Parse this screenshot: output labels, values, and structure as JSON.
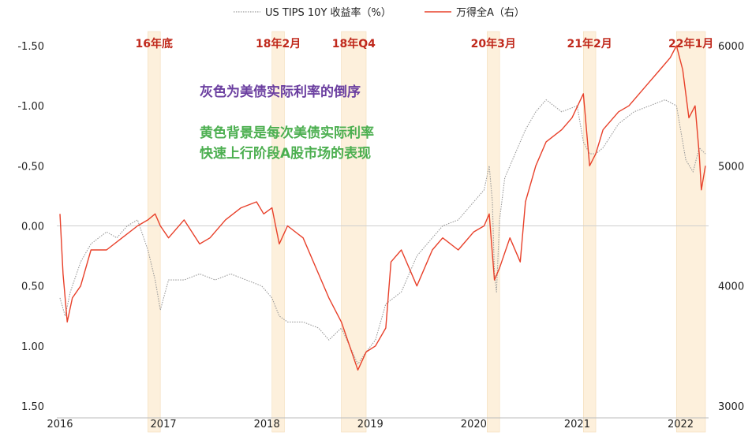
{
  "chart_data": {
    "type": "line",
    "title": "",
    "legend": [
      {
        "name": "US TIPS 10Y 收益率（%）",
        "style": "dotted",
        "color": "#9a9a9a"
      },
      {
        "name": "万得全A（右）",
        "style": "solid",
        "color": "#e8402a"
      }
    ],
    "x_ticks": [
      "2016",
      "2017",
      "2018",
      "2019",
      "2020",
      "2021",
      "2022"
    ],
    "left_axis": {
      "ticks": [
        "-1.50",
        "-1.00",
        "-0.50",
        "0.00",
        "0.50",
        "1.00",
        "1.50"
      ],
      "range": [
        -1.5,
        1.5
      ],
      "inverted": true
    },
    "right_axis": {
      "ticks": [
        "6000",
        "5000",
        "4000",
        "3000"
      ],
      "range": [
        3000,
        6000
      ]
    },
    "highlight_color": "#fdf0dc",
    "highlights": [
      {
        "label": "16年底",
        "start": 2016.85,
        "end": 2016.97
      },
      {
        "label": "18年2月",
        "start": 2018.05,
        "end": 2018.17
      },
      {
        "label": "18年Q4",
        "start": 2018.72,
        "end": 2018.96
      },
      {
        "label": "20年3月",
        "start": 2020.13,
        "end": 2020.25
      },
      {
        "label": "21年2月",
        "start": 2021.06,
        "end": 2021.18
      },
      {
        "label": "22年1月",
        "start": 2021.96,
        "end": 2022.24
      }
    ],
    "label_color": "#c0291c",
    "annotations": [
      {
        "text": "灰色为美债实际利率的倒序",
        "color": "#6b3fa0"
      },
      {
        "text": "黄色背景是每次美债实际利率",
        "color": "#4caf50"
      },
      {
        "text": "快速上行阶段A股市场的表现",
        "color": "#4caf50"
      }
    ],
    "series": [
      {
        "name": "US TIPS 10Y 收益率（%）",
        "axis": "left",
        "x": [
          2016.0,
          2016.05,
          2016.1,
          2016.2,
          2016.3,
          2016.45,
          2016.55,
          2016.65,
          2016.75,
          2016.85,
          2016.92,
          2016.97,
          2017.05,
          2017.2,
          2017.35,
          2017.5,
          2017.65,
          2017.8,
          2017.95,
          2018.05,
          2018.12,
          2018.2,
          2018.35,
          2018.5,
          2018.6,
          2018.72,
          2018.8,
          2018.88,
          2018.96,
          2019.05,
          2019.15,
          2019.3,
          2019.45,
          2019.6,
          2019.7,
          2019.85,
          2020.0,
          2020.1,
          2020.15,
          2020.18,
          2020.2,
          2020.22,
          2020.25,
          2020.3,
          2020.4,
          2020.5,
          2020.6,
          2020.7,
          2020.85,
          2021.0,
          2021.06,
          2021.12,
          2021.18,
          2021.25,
          2021.4,
          2021.55,
          2021.7,
          2021.85,
          2021.96,
          2022.05,
          2022.12,
          2022.18,
          2022.24
        ],
        "values": [
          0.6,
          0.75,
          0.55,
          0.3,
          0.15,
          0.05,
          0.1,
          0.0,
          -0.05,
          0.2,
          0.45,
          0.7,
          0.45,
          0.45,
          0.4,
          0.45,
          0.4,
          0.45,
          0.5,
          0.6,
          0.75,
          0.8,
          0.8,
          0.85,
          0.95,
          0.85,
          1.0,
          1.15,
          1.05,
          0.95,
          0.65,
          0.55,
          0.25,
          0.1,
          0.0,
          -0.05,
          -0.2,
          -0.3,
          -0.5,
          -0.2,
          0.4,
          0.55,
          -0.05,
          -0.4,
          -0.6,
          -0.8,
          -0.95,
          -1.05,
          -0.95,
          -1.0,
          -0.7,
          -0.6,
          -0.6,
          -0.65,
          -0.85,
          -0.95,
          -1.0,
          -1.05,
          -1.0,
          -0.55,
          -0.45,
          -0.65,
          -0.6
        ]
      },
      {
        "name": "万得全A（右）",
        "axis": "right",
        "x": [
          2016.0,
          2016.03,
          2016.07,
          2016.12,
          2016.2,
          2016.3,
          2016.45,
          2016.6,
          2016.75,
          2016.85,
          2016.92,
          2016.97,
          2017.05,
          2017.2,
          2017.35,
          2017.45,
          2017.6,
          2017.75,
          2017.9,
          2017.97,
          2018.05,
          2018.12,
          2018.2,
          2018.35,
          2018.5,
          2018.6,
          2018.72,
          2018.8,
          2018.88,
          2018.96,
          2019.05,
          2019.15,
          2019.2,
          2019.3,
          2019.45,
          2019.6,
          2019.7,
          2019.85,
          2020.0,
          2020.1,
          2020.15,
          2020.2,
          2020.25,
          2020.35,
          2020.45,
          2020.5,
          2020.6,
          2020.7,
          2020.85,
          2020.95,
          2021.06,
          2021.12,
          2021.18,
          2021.25,
          2021.4,
          2021.5,
          2021.6,
          2021.7,
          2021.8,
          2021.9,
          2021.96,
          2022.02,
          2022.08,
          2022.14,
          2022.18,
          2022.2,
          2022.24
        ],
        "values": [
          4600,
          4100,
          3700,
          3900,
          4000,
          4300,
          4300,
          4400,
          4500,
          4550,
          4600,
          4500,
          4400,
          4550,
          4350,
          4400,
          4550,
          4650,
          4700,
          4600,
          4650,
          4350,
          4500,
          4400,
          4100,
          3900,
          3700,
          3500,
          3300,
          3450,
          3500,
          3650,
          4200,
          4300,
          4000,
          4300,
          4400,
          4300,
          4450,
          4500,
          4600,
          4050,
          4150,
          4400,
          4200,
          4700,
          5000,
          5200,
          5300,
          5400,
          5600,
          5000,
          5100,
          5300,
          5450,
          5500,
          5600,
          5700,
          5800,
          5900,
          6000,
          5800,
          5400,
          5500,
          5100,
          4800,
          5000
        ]
      }
    ]
  }
}
